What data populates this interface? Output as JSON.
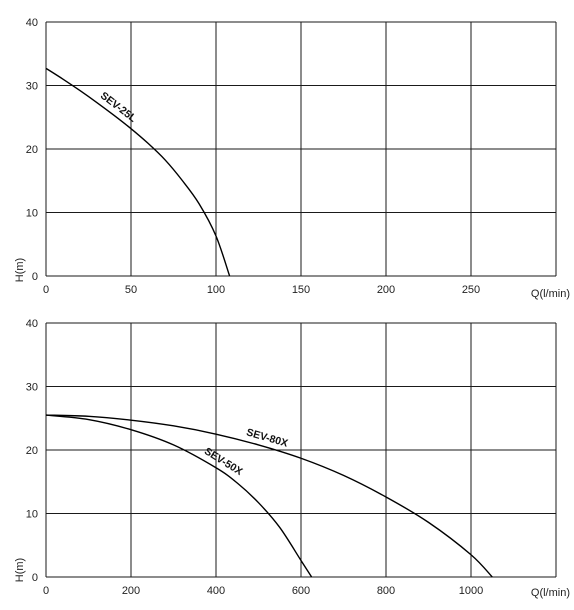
{
  "chart_data": [
    {
      "type": "line",
      "title": "",
      "xlabel": "Q(l/min)",
      "ylabel": "H(m)",
      "xlim": [
        0,
        300
      ],
      "ylim": [
        0,
        40
      ],
      "x_ticks": [
        "0",
        "50",
        "100",
        "150",
        "200",
        "250"
      ],
      "y_ticks": [
        "0",
        "10",
        "20",
        "30",
        "40"
      ],
      "grid": true,
      "series": [
        {
          "name": "SEV-25L",
          "x": [
            0,
            10,
            20,
            30,
            40,
            50,
            60,
            70,
            80,
            90,
            100,
            108
          ],
          "y": [
            32.7,
            31.0,
            29.2,
            27.3,
            25.3,
            23.2,
            20.9,
            18.3,
            15.1,
            11.4,
            6.3,
            0
          ]
        }
      ]
    },
    {
      "type": "line",
      "title": "",
      "xlabel": "Q(l/min)",
      "ylabel": "H(m)",
      "xlim": [
        0,
        1200
      ],
      "ylim": [
        0,
        40
      ],
      "x_ticks": [
        "0",
        "200",
        "400",
        "600",
        "800",
        "1000"
      ],
      "y_ticks": [
        "0",
        "10",
        "20",
        "30",
        "40"
      ],
      "grid": true,
      "series": [
        {
          "name": "SEV-80X",
          "x": [
            0,
            100,
            200,
            300,
            400,
            500,
            600,
            700,
            800,
            900,
            1000,
            1050
          ],
          "y": [
            25.5,
            25.3,
            24.7,
            23.8,
            22.5,
            20.8,
            18.7,
            16.0,
            12.6,
            8.6,
            3.5,
            0
          ]
        },
        {
          "name": "SEV-50X",
          "x": [
            0,
            100,
            200,
            300,
            400,
            450,
            500,
            550,
            600,
            625
          ],
          "y": [
            25.5,
            24.8,
            23.2,
            20.8,
            17.2,
            14.8,
            11.7,
            7.8,
            2.6,
            0
          ]
        }
      ]
    }
  ]
}
